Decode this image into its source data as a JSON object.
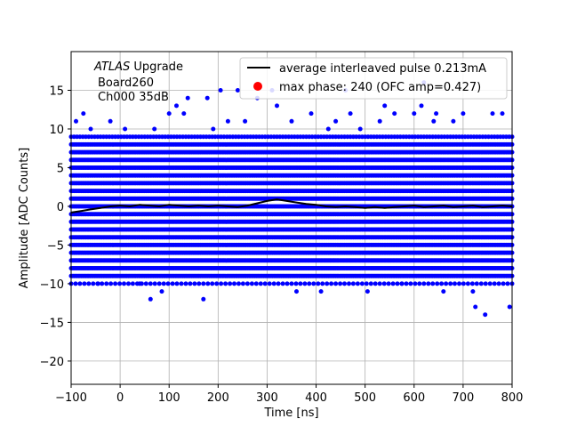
{
  "chart_data": {
    "type": "scatter",
    "xlabel": "Time [ns]",
    "ylabel": "Amplitude [ADC Counts]",
    "xlim": [
      -100,
      800
    ],
    "ylim": [
      -23,
      20
    ],
    "xticks": [
      -100,
      0,
      100,
      200,
      300,
      400,
      500,
      600,
      700,
      800
    ],
    "yticks": [
      -20,
      -15,
      -10,
      -5,
      0,
      5,
      10,
      15
    ],
    "grid": true,
    "legend_position": "top-right",
    "annotation": {
      "italic": "ATLAS",
      "line1_rest": " Upgrade",
      "line2": "Board260",
      "line3": "Ch000 35dB"
    },
    "series": [
      {
        "name": "average interleaved pulse 0.213mA",
        "kind": "line",
        "color": "#000000",
        "x": [
          -100,
          -80,
          -60,
          -40,
          -20,
          0,
          20,
          40,
          60,
          80,
          100,
          120,
          140,
          160,
          180,
          200,
          220,
          240,
          260,
          280,
          300,
          320,
          340,
          360,
          380,
          400,
          420,
          440,
          460,
          480,
          500,
          520,
          540,
          560,
          580,
          600,
          620,
          640,
          660,
          680,
          700,
          720,
          740,
          760,
          780,
          800
        ],
        "y": [
          -0.8,
          -0.6,
          -0.4,
          -0.2,
          0.0,
          0.1,
          0.0,
          0.2,
          0.1,
          0.0,
          0.2,
          0.1,
          0.0,
          0.1,
          0.0,
          0.1,
          0.0,
          -0.1,
          0.1,
          0.4,
          0.7,
          0.9,
          0.7,
          0.5,
          0.3,
          0.2,
          0.0,
          -0.1,
          0.0,
          -0.1,
          -0.2,
          -0.1,
          -0.2,
          -0.1,
          0.0,
          0.1,
          -0.1,
          0.0,
          0.1,
          -0.1,
          0.0,
          0.1,
          -0.1,
          0.0,
          0.1,
          0.0
        ]
      },
      {
        "name": "samples",
        "kind": "dense-scatter",
        "color": "#0000ff",
        "x_range": [
          -100,
          800
        ],
        "x_step": 3,
        "dense_levels": [
          -9,
          -8,
          -7,
          -6,
          -5,
          -4,
          -3,
          -2,
          -1,
          0,
          1,
          2,
          3,
          4,
          5,
          6,
          7,
          8
        ],
        "sparse_levels": [
          -10,
          9
        ],
        "outliers": [
          {
            "x": -90,
            "y": 11
          },
          {
            "x": -75,
            "y": 12
          },
          {
            "x": -60,
            "y": 10
          },
          {
            "x": -45,
            "y": -10
          },
          {
            "x": -20,
            "y": 11
          },
          {
            "x": 10,
            "y": 10
          },
          {
            "x": 40,
            "y": -10
          },
          {
            "x": 62,
            "y": -12
          },
          {
            "x": 70,
            "y": 10
          },
          {
            "x": 85,
            "y": -11
          },
          {
            "x": 100,
            "y": 12
          },
          {
            "x": 115,
            "y": 13
          },
          {
            "x": 130,
            "y": 12
          },
          {
            "x": 138,
            "y": 14
          },
          {
            "x": 170,
            "y": -12
          },
          {
            "x": 178,
            "y": 14
          },
          {
            "x": 190,
            "y": 10
          },
          {
            "x": 205,
            "y": 15
          },
          {
            "x": 220,
            "y": 11
          },
          {
            "x": 240,
            "y": 15
          },
          {
            "x": 255,
            "y": 11
          },
          {
            "x": 280,
            "y": 14
          },
          {
            "x": 310,
            "y": 15
          },
          {
            "x": 320,
            "y": 13
          },
          {
            "x": 350,
            "y": 11
          },
          {
            "x": 360,
            "y": -11
          },
          {
            "x": 390,
            "y": 12
          },
          {
            "x": 410,
            "y": -11
          },
          {
            "x": 425,
            "y": 10
          },
          {
            "x": 440,
            "y": 11
          },
          {
            "x": 460,
            "y": 15
          },
          {
            "x": 470,
            "y": 12
          },
          {
            "x": 490,
            "y": 10
          },
          {
            "x": 505,
            "y": -11
          },
          {
            "x": 530,
            "y": 11
          },
          {
            "x": 540,
            "y": 13
          },
          {
            "x": 560,
            "y": 12
          },
          {
            "x": 575,
            "y": -10
          },
          {
            "x": 600,
            "y": 12
          },
          {
            "x": 615,
            "y": 13
          },
          {
            "x": 620,
            "y": 16
          },
          {
            "x": 640,
            "y": 11
          },
          {
            "x": 645,
            "y": 12
          },
          {
            "x": 660,
            "y": -11
          },
          {
            "x": 680,
            "y": 11
          },
          {
            "x": 700,
            "y": 12
          },
          {
            "x": 720,
            "y": -11
          },
          {
            "x": 725,
            "y": -13
          },
          {
            "x": 745,
            "y": -14
          },
          {
            "x": 760,
            "y": 12
          },
          {
            "x": 780,
            "y": 12
          },
          {
            "x": 795,
            "y": -13
          }
        ]
      },
      {
        "name": "max phase: 240 (OFC amp=0.427)",
        "kind": "marker",
        "color": "#ff0000",
        "x": [],
        "y": []
      }
    ]
  }
}
